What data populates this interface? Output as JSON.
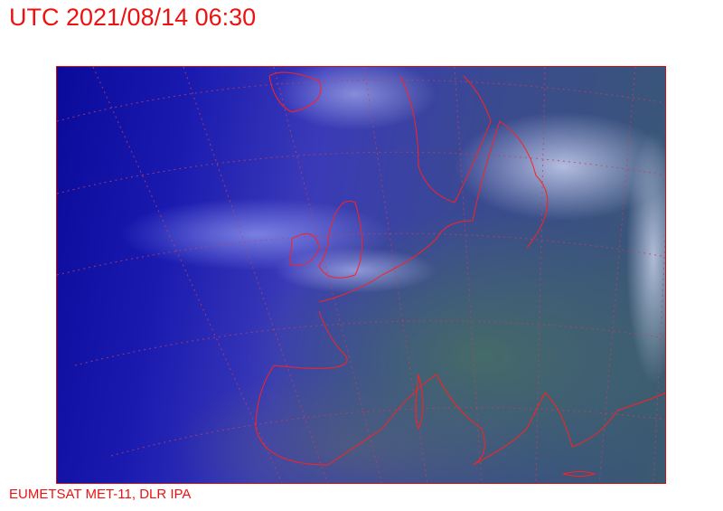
{
  "header": {
    "title": "UTC 2021/08/14 06:30"
  },
  "footer": {
    "credit": "EUMETSAT MET-11, DLR IPA"
  },
  "map": {
    "type": "satellite-composite",
    "region": "Europe",
    "graticule": "dotted",
    "coastline_color": "#ff2020"
  }
}
